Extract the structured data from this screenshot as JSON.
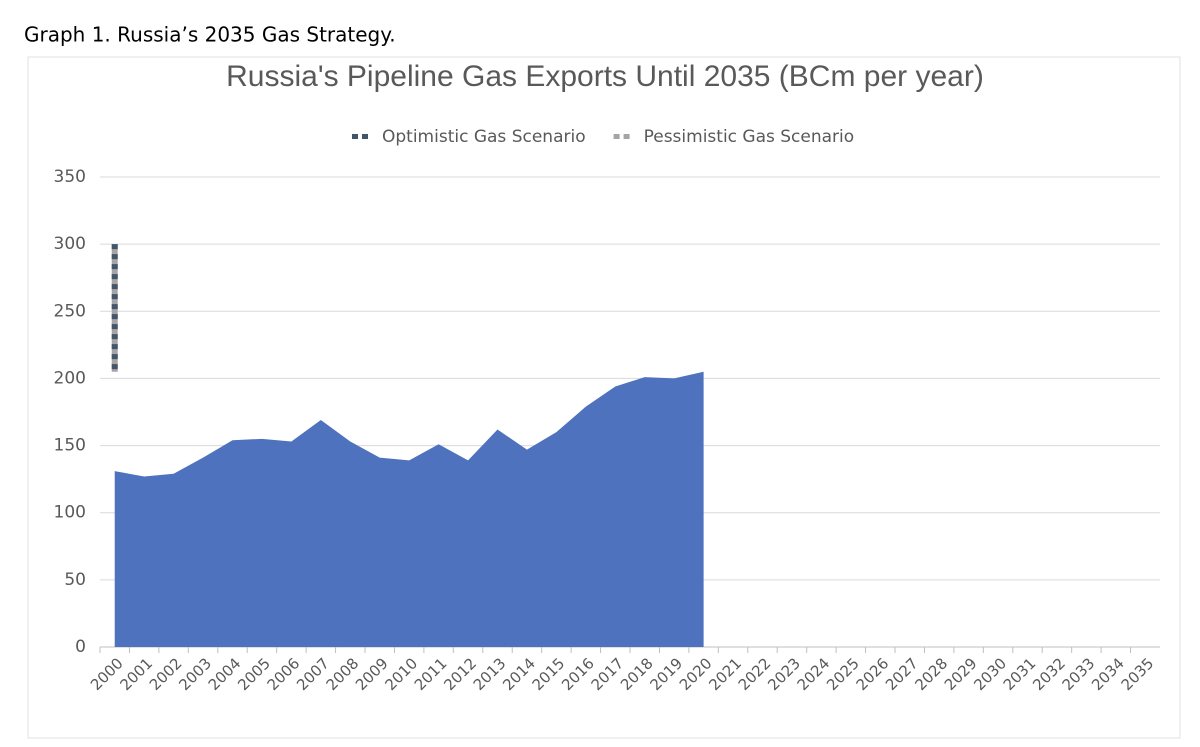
{
  "caption": "Graph 1. Russia’s 2035 Gas Strategy.",
  "chart_data": {
    "type": "area",
    "title": "Russia's Pipeline Gas Exports Until 2035 (BCm per year)",
    "categories": [
      "2000",
      "2001",
      "2002",
      "2003",
      "2004",
      "2005",
      "2006",
      "2007",
      "2008",
      "2009",
      "2010",
      "2011",
      "2012",
      "2013",
      "2014",
      "2015",
      "2016",
      "2017",
      "2018",
      "2019",
      "2020",
      "2021",
      "2022",
      "2023",
      "2024",
      "2025",
      "2026",
      "2027",
      "2028",
      "2029",
      "2030",
      "2031",
      "2032",
      "2033",
      "2034",
      "2035"
    ],
    "series": [
      {
        "color": "#4f72be",
        "values": [
          131,
          127,
          129,
          141,
          154,
          155,
          153,
          169,
          153,
          141,
          139,
          151,
          139,
          162,
          147,
          160,
          179,
          194,
          201,
          200,
          205,
          null,
          null,
          null,
          null,
          null,
          null,
          null,
          null,
          null,
          null,
          null,
          null,
          null,
          null,
          null
        ]
      },
      {
        "name": "Optimistic Gas Scenario",
        "color": "#44546a",
        "dashed": true,
        "values": [
          300,
          null,
          null,
          null,
          null,
          null,
          null,
          null,
          null,
          null,
          null,
          null,
          null,
          null,
          null,
          null,
          null,
          null,
          null,
          null,
          null,
          null,
          null,
          null,
          null,
          null,
          null,
          null,
          null,
          null,
          null,
          null,
          null,
          null,
          null,
          null
        ]
      },
      {
        "name": "Pessimistic Gas Scenario",
        "color": "#a5a5a5",
        "dashed": true,
        "values": [
          205,
          null,
          null,
          null,
          null,
          null,
          null,
          null,
          null,
          null,
          null,
          null,
          null,
          null,
          null,
          null,
          null,
          null,
          null,
          null,
          null,
          null,
          null,
          null,
          null,
          null,
          null,
          null,
          null,
          null,
          null,
          null,
          null,
          null,
          null,
          null
        ]
      }
    ],
    "ylim": [
      0,
      350
    ],
    "yticks": [
      0,
      50,
      100,
      150,
      200,
      250,
      300,
      350
    ],
    "grid": true,
    "legend": "top"
  }
}
